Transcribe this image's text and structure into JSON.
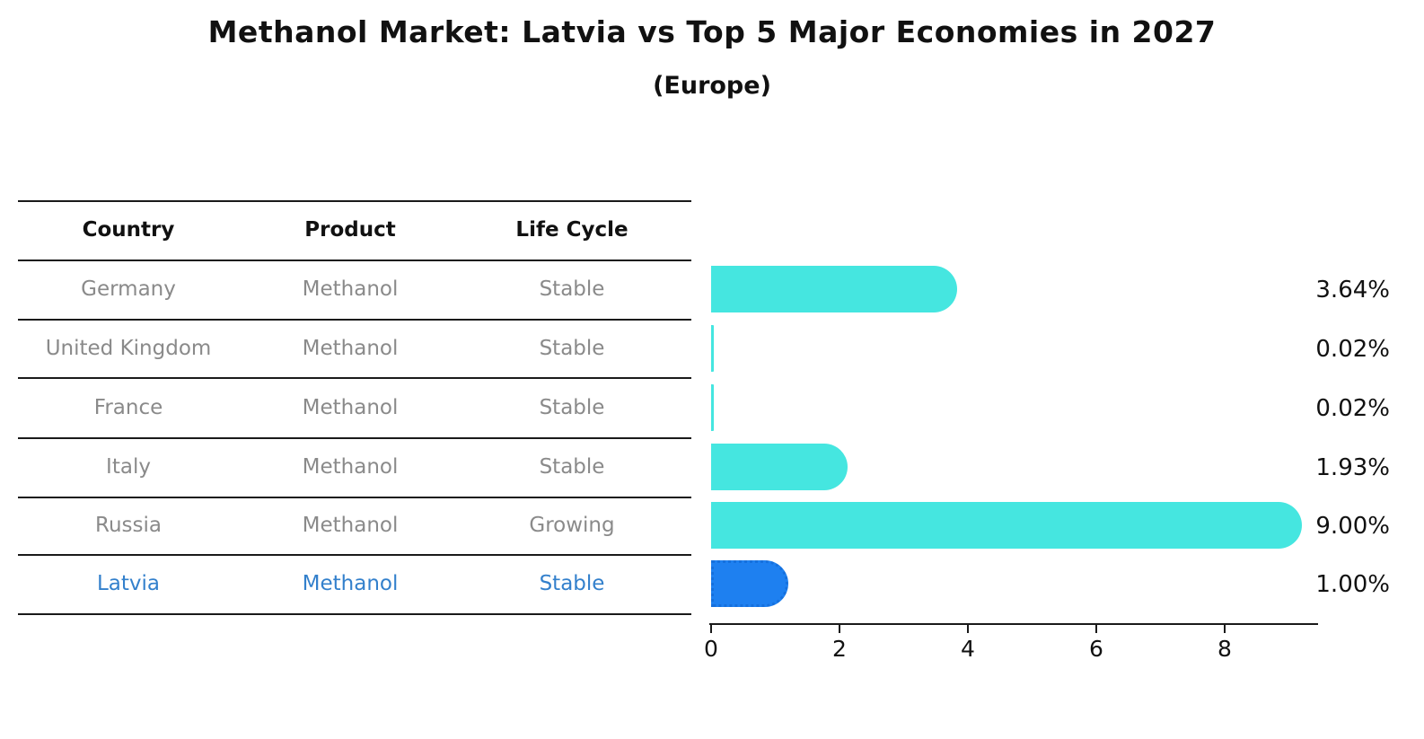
{
  "title": "Methanol Market: Latvia vs Top 5 Major Economies in 2027",
  "subtitle": "(Europe)",
  "table": {
    "headers": [
      "Country",
      "Product",
      "Life Cycle"
    ],
    "rows": [
      {
        "country": "Germany",
        "product": "Methanol",
        "life_cycle": "Stable",
        "highlight": false
      },
      {
        "country": "United Kingdom",
        "product": "Methanol",
        "life_cycle": "Stable",
        "highlight": false
      },
      {
        "country": "France",
        "product": "Methanol",
        "life_cycle": "Stable",
        "highlight": false
      },
      {
        "country": "Italy",
        "product": "Methanol",
        "life_cycle": "Stable",
        "highlight": false
      },
      {
        "country": "Russia",
        "product": "Methanol",
        "life_cycle": "Growing",
        "highlight": false
      },
      {
        "country": "Latvia",
        "product": "Methanol",
        "life_cycle": "Stable",
        "highlight": true
      }
    ]
  },
  "chart_data": {
    "type": "bar",
    "orientation": "horizontal",
    "title": "Methanol Market: Latvia vs Top 5 Major Economies in 2027",
    "subtitle": "(Europe)",
    "categories": [
      "Germany",
      "United Kingdom",
      "France",
      "Italy",
      "Russia",
      "Latvia"
    ],
    "values": [
      3.64,
      0.02,
      0.02,
      1.93,
      9.0,
      1.0
    ],
    "value_labels": [
      "3.64%",
      "0.02%",
      "0.02%",
      "1.93%",
      "9.00%",
      "1.00%"
    ],
    "xlabel": "",
    "ylabel": "",
    "xlim": [
      0,
      9.45
    ],
    "x_ticks": [
      0,
      2,
      4,
      6,
      8
    ],
    "grid": false,
    "legend": false,
    "highlight_index": 5
  },
  "colors": {
    "bar": "#45E6E0",
    "highlight_bar": "#1E80F0",
    "highlight_bar_border": "#1570DD",
    "table_text": "#8a8a8a",
    "highlight_text": "#3380cc",
    "axis": "#1a1a1a",
    "title_text": "#111111"
  }
}
